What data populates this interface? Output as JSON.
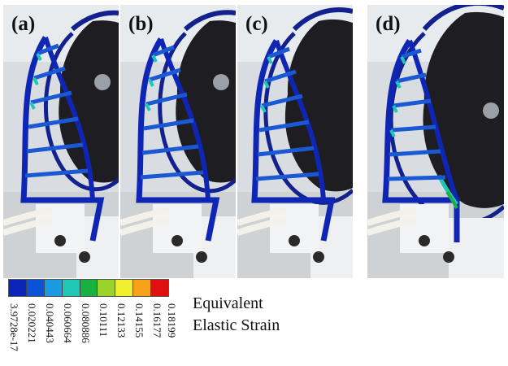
{
  "panels": [
    {
      "label": "(a)"
    },
    {
      "label": "(b)"
    },
    {
      "label": "(c)"
    },
    {
      "label": "(d)"
    }
  ],
  "legend": {
    "title_line1": "Equivalent",
    "title_line2": "Elastic Strain",
    "colors": [
      "#0a23b8",
      "#0a53d8",
      "#1a9ae0",
      "#1ec7b6",
      "#18b040",
      "#9ad42a",
      "#f0f030",
      "#f6a21a",
      "#e01010"
    ],
    "ticks": [
      "3.9728e-17",
      "0.020221",
      "0.040443",
      "0.060664",
      "0.080886",
      "0.10111",
      "0.12133",
      "0.14155",
      "0.16177",
      "0.18199"
    ]
  }
}
